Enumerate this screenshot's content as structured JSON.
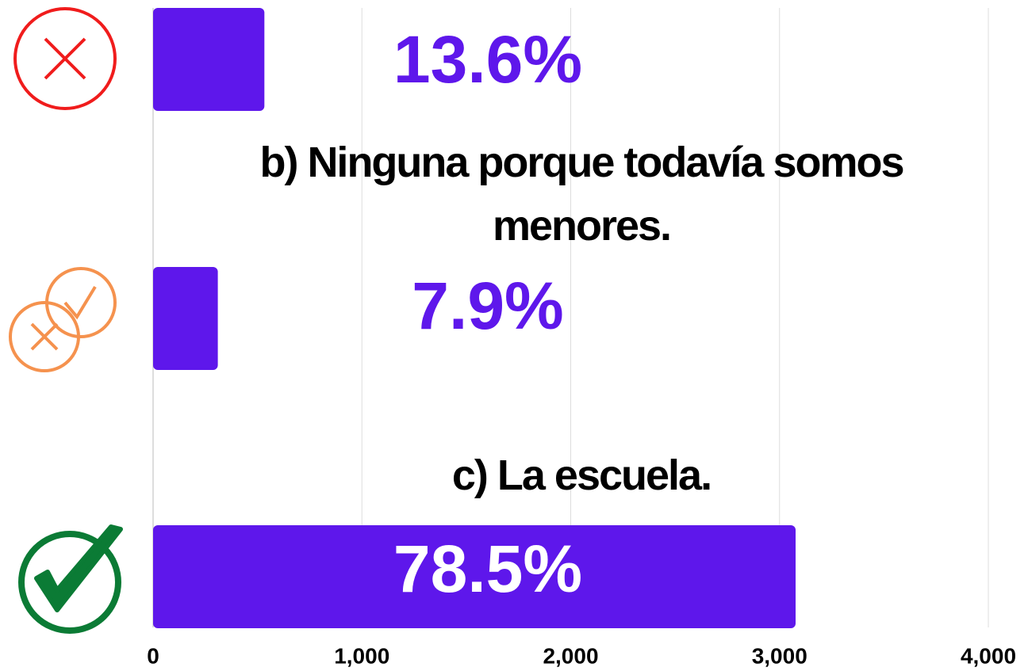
{
  "chart_data": {
    "type": "bar",
    "orientation": "horizontal",
    "categories": [
      null,
      "b) Ninguna porque todavía somos menores.",
      "c) La escuela."
    ],
    "values": [
      533,
      310,
      3077
    ],
    "value_labels": [
      "13.6%",
      "7.9%",
      "78.5%"
    ],
    "color": "#5e17eb",
    "xlim": [
      0,
      4000
    ],
    "xticks": [
      0,
      {
        "value": 1000,
        "label": "1,000"
      },
      {
        "value": 2000,
        "label": "2,000"
      },
      {
        "value": 3000,
        "label": "3,000"
      },
      {
        "value": 4000,
        "label": "4,000"
      }
    ],
    "grid": true
  }
}
